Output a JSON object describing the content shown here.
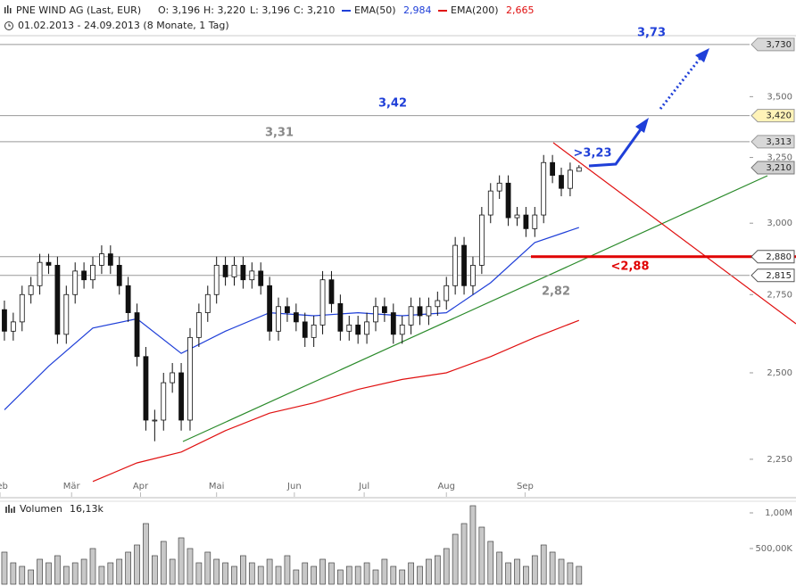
{
  "header": {
    "title": "PNE WIND AG (Last, EUR)",
    "open": "O: 3,196",
    "high": "H: 3,220",
    "low": "L: 3,196",
    "close": "C: 3,210",
    "ema50_last": "2,984",
    "ema200_last": "2,665",
    "range": "01.02.2013 - 24.09.2013 (8 Monate, 1 Tag)"
  },
  "chart_data": [
    {
      "type": "candlestick",
      "log_scale": true,
      "categories": [
        null,
        null,
        null,
        null,
        null,
        null,
        null,
        null,
        null,
        null,
        null,
        null,
        null,
        null,
        null,
        null,
        null,
        null,
        null,
        null,
        null,
        null,
        null,
        null,
        null,
        null,
        null,
        null,
        null,
        null,
        null,
        null,
        null,
        null,
        null,
        null,
        null,
        null,
        null,
        null,
        null,
        null,
        null,
        null,
        null,
        null,
        null,
        null,
        null,
        null,
        null,
        null,
        null,
        null,
        null,
        null,
        null,
        null,
        null,
        null,
        null,
        null,
        null,
        null,
        null,
        null
      ],
      "open": [
        2.7,
        2.63,
        2.66,
        2.75,
        2.78,
        2.86,
        2.85,
        2.62,
        2.75,
        2.83,
        2.8,
        2.85,
        2.89,
        2.85,
        2.78,
        2.69,
        2.55,
        2.36,
        2.36,
        2.47,
        2.5,
        2.36,
        2.61,
        2.69,
        2.75,
        2.85,
        2.81,
        2.85,
        2.8,
        2.83,
        2.78,
        2.63,
        2.71,
        2.69,
        2.66,
        2.61,
        2.65,
        2.8,
        2.72,
        2.63,
        2.65,
        2.62,
        2.66,
        2.71,
        2.69,
        2.62,
        2.65,
        2.71,
        2.68,
        2.71,
        2.73,
        2.78,
        2.92,
        2.78,
        2.85,
        3.03,
        3.12,
        3.15,
        3.02,
        3.03,
        2.98,
        3.03,
        3.23,
        3.18,
        3.13,
        3.196
      ],
      "high": [
        2.73,
        2.69,
        2.78,
        2.81,
        2.89,
        2.89,
        2.88,
        2.78,
        2.86,
        2.86,
        2.88,
        2.92,
        2.92,
        2.88,
        2.81,
        2.72,
        2.58,
        2.39,
        2.5,
        2.53,
        2.53,
        2.64,
        2.72,
        2.78,
        2.88,
        2.88,
        2.88,
        2.88,
        2.86,
        2.86,
        2.81,
        2.74,
        2.74,
        2.72,
        2.69,
        2.68,
        2.83,
        2.83,
        2.75,
        2.68,
        2.68,
        2.69,
        2.74,
        2.74,
        2.72,
        2.68,
        2.74,
        2.74,
        2.74,
        2.76,
        2.81,
        2.95,
        2.95,
        2.88,
        3.06,
        3.15,
        3.18,
        3.18,
        3.06,
        3.06,
        3.06,
        3.26,
        3.26,
        3.21,
        3.23,
        3.22
      ],
      "low": [
        2.6,
        2.6,
        2.63,
        2.72,
        2.75,
        2.82,
        2.59,
        2.59,
        2.72,
        2.77,
        2.77,
        2.82,
        2.82,
        2.75,
        2.66,
        2.52,
        2.33,
        2.3,
        2.33,
        2.44,
        2.33,
        2.33,
        2.58,
        2.66,
        2.72,
        2.78,
        2.78,
        2.77,
        2.77,
        2.75,
        2.6,
        2.6,
        2.66,
        2.63,
        2.58,
        2.58,
        2.62,
        2.69,
        2.6,
        2.6,
        2.59,
        2.59,
        2.63,
        2.66,
        2.59,
        2.59,
        2.62,
        2.65,
        2.65,
        2.68,
        2.7,
        2.75,
        2.75,
        2.75,
        2.82,
        3.0,
        3.09,
        2.99,
        2.99,
        2.95,
        2.95,
        3.0,
        3.15,
        3.1,
        3.1,
        3.196
      ],
      "close": [
        2.63,
        2.66,
        2.75,
        2.78,
        2.86,
        2.85,
        2.62,
        2.75,
        2.83,
        2.8,
        2.85,
        2.89,
        2.85,
        2.78,
        2.69,
        2.55,
        2.36,
        2.36,
        2.47,
        2.5,
        2.36,
        2.61,
        2.69,
        2.75,
        2.85,
        2.81,
        2.85,
        2.8,
        2.83,
        2.78,
        2.63,
        2.71,
        2.69,
        2.66,
        2.61,
        2.65,
        2.8,
        2.72,
        2.63,
        2.65,
        2.62,
        2.66,
        2.71,
        2.69,
        2.62,
        2.65,
        2.71,
        2.68,
        2.71,
        2.73,
        2.78,
        2.92,
        2.78,
        2.85,
        3.03,
        3.12,
        3.15,
        3.02,
        3.03,
        2.98,
        3.03,
        3.23,
        3.18,
        3.13,
        3.2,
        3.21
      ],
      "last_label": "3,210",
      "series": [
        {
          "name": "EMA(50)",
          "color": "#1f3fd8",
          "x": [
            0,
            5,
            10,
            15,
            20,
            25,
            30,
            35,
            40,
            45,
            50,
            55,
            60,
            65
          ],
          "values": [
            2.39,
            2.52,
            2.64,
            2.67,
            2.56,
            2.63,
            2.69,
            2.68,
            2.69,
            2.68,
            2.69,
            2.79,
            2.93,
            2.984
          ]
        },
        {
          "name": "EMA(200)",
          "color": "#e01010",
          "x": [
            10,
            15,
            20,
            25,
            30,
            35,
            40,
            45,
            50,
            55,
            60,
            65
          ],
          "values": [
            2.19,
            2.24,
            2.27,
            2.33,
            2.38,
            2.41,
            2.45,
            2.48,
            2.5,
            2.55,
            2.61,
            2.665
          ]
        }
      ],
      "xlim": [
        -0.5,
        84.3
      ],
      "ylim": [
        2.18,
        3.77
      ],
      "xticks": [
        {
          "value": -0.5,
          "label": "Feb"
        },
        {
          "value": 7.6,
          "label": "Mär"
        },
        {
          "value": 15.4,
          "label": "Apr"
        },
        {
          "value": 24.0,
          "label": "Mai"
        },
        {
          "value": 32.8,
          "label": "Jun"
        },
        {
          "value": 40.7,
          "label": "Jul"
        },
        {
          "value": 50.0,
          "label": "Aug"
        },
        {
          "value": 58.9,
          "label": "Sep"
        }
      ],
      "yticks": [
        {
          "value": 2.25,
          "label": "2,250"
        },
        {
          "value": 2.5,
          "label": "2,500"
        },
        {
          "value": 2.75,
          "label": "2,750"
        },
        {
          "value": 3.0,
          "label": "3,000"
        },
        {
          "value": 3.25,
          "label": "3,250"
        },
        {
          "value": 3.5,
          "label": "3,500"
        }
      ],
      "levels": [
        {
          "value": 3.73,
          "label": "3,730",
          "box": "#d8d8d8"
        },
        {
          "value": 3.42,
          "label": "3,420",
          "box": "#fff3b8"
        },
        {
          "value": 3.313,
          "label": "3,313",
          "box": "#d8d8d8"
        },
        {
          "value": 2.88,
          "label": "2,880",
          "box": "#ffffff",
          "mark_color": "#e00000"
        },
        {
          "value": 2.815,
          "label": "2,815",
          "box": "#ffffff"
        }
      ],
      "annotations": [
        {
          "text": "3,73",
          "color": "#1f3fd8"
        },
        {
          "text": "3,42",
          "color": "#1f3fd8"
        },
        {
          "text": "3,31",
          "color": "#888888"
        },
        {
          "text": ">3,23",
          "color": "#1f3fd8"
        },
        {
          "text": "<2,88",
          "color": "#e00000"
        },
        {
          "text": "2,82",
          "color": "#888888"
        }
      ]
    },
    {
      "type": "bar",
      "title": "Volumen",
      "subtitle": "16,13k",
      "color": "#c8c8c8",
      "values": [
        450000,
        300000,
        250000,
        200000,
        350000,
        300000,
        400000,
        250000,
        300000,
        350000,
        500000,
        250000,
        300000,
        350000,
        450000,
        550000,
        850000,
        400000,
        600000,
        350000,
        650000,
        500000,
        300000,
        450000,
        350000,
        300000,
        250000,
        400000,
        300000,
        250000,
        350000,
        250000,
        400000,
        200000,
        300000,
        250000,
        350000,
        300000,
        200000,
        250000,
        250000,
        300000,
        200000,
        350000,
        250000,
        200000,
        300000,
        250000,
        350000,
        400000,
        500000,
        700000,
        850000,
        1100000,
        800000,
        600000,
        450000,
        300000,
        350000,
        250000,
        400000,
        550000,
        450000,
        350000,
        300000,
        250000
      ],
      "ylim": [
        0,
        1125000
      ],
      "yticks": [
        {
          "value": 500000,
          "label": "500,00K"
        },
        {
          "value": 1000000,
          "label": "1,00M"
        }
      ]
    }
  ]
}
